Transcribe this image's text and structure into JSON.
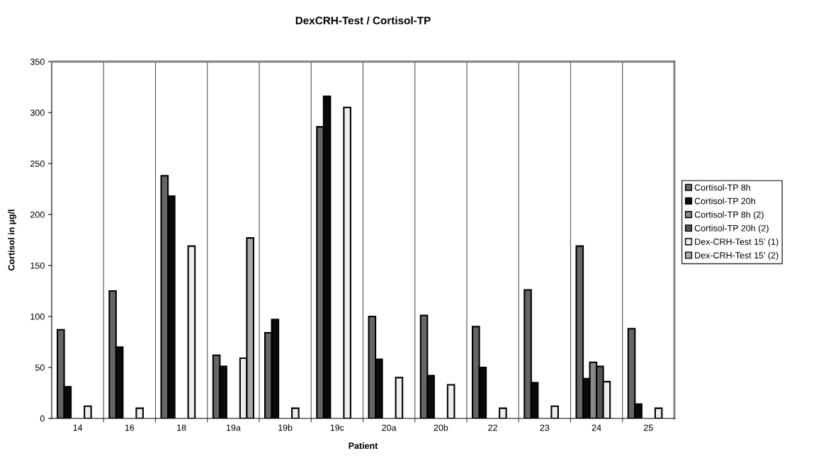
{
  "chart_data": {
    "type": "bar",
    "title": "DexCRH-Test / Cortisol-TP",
    "xlabel": "Patient",
    "ylabel": "Cortisol in µg/l",
    "categories": [
      "14",
      "16",
      "18",
      "19a",
      "19b",
      "19c",
      "20a",
      "20b",
      "22",
      "23",
      "24",
      "25"
    ],
    "series": [
      {
        "name": "Cortisol-TP 8h",
        "color": "#666666",
        "values": [
          87,
          125,
          238,
          62,
          84,
          286,
          100,
          101,
          90,
          126,
          169,
          88
        ]
      },
      {
        "name": "Cortisol-TP 20h",
        "color": "#0a0a0a",
        "values": [
          31,
          70,
          218,
          51,
          97,
          316,
          58,
          42,
          50,
          35,
          39,
          14
        ]
      },
      {
        "name": "Cortisol-TP 8h (2)",
        "color": "#888888",
        "values": [
          null,
          null,
          null,
          null,
          null,
          null,
          null,
          null,
          null,
          null,
          55,
          null
        ]
      },
      {
        "name": "Cortisol-TP 20h (2)",
        "color": "#555555",
        "values": [
          null,
          null,
          null,
          null,
          null,
          null,
          null,
          null,
          null,
          null,
          51,
          null
        ]
      },
      {
        "name": "Dex-CRH-Test 15' (1)",
        "color": "#eeeeee",
        "values": [
          12,
          10,
          169,
          59,
          10,
          305,
          40,
          33,
          10,
          12,
          36,
          10
        ]
      },
      {
        "name": "Dex-CRH-Test 15' (2)",
        "color": "#aaaaaa",
        "values": [
          null,
          null,
          null,
          177,
          null,
          null,
          null,
          null,
          null,
          null,
          null,
          null
        ]
      }
    ],
    "ylim": [
      0,
      350
    ],
    "yticks": [
      0,
      50,
      100,
      150,
      200,
      250,
      300,
      350
    ],
    "grid": "x",
    "legend": "right"
  }
}
